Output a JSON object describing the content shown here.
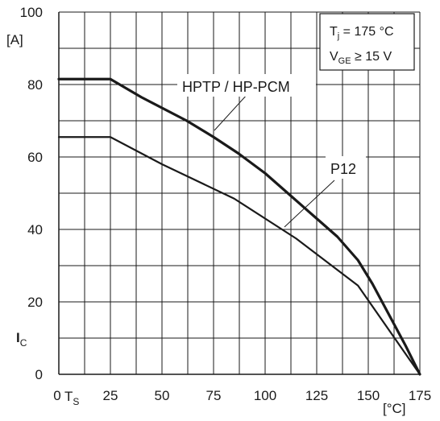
{
  "chart_data": {
    "type": "line",
    "xlim": [
      0,
      175
    ],
    "ylim": [
      0,
      100
    ],
    "x_ticks": [
      "0",
      "25",
      "50",
      "75",
      "100",
      "125",
      "150",
      "175"
    ],
    "y_ticks": [
      "0",
      "20",
      "40",
      "60",
      "80",
      "100"
    ],
    "x_unit": "[°C]",
    "x_symbol": "T",
    "x_symbol_sub": "S",
    "y_unit": "[A]",
    "y_symbol": "I",
    "y_symbol_sub": "C",
    "grid": true,
    "conditions": {
      "line1_symbol": "T",
      "line1_sub": "j",
      "line1_rest": " = 175 °C",
      "line2_symbol": "V",
      "line2_sub": "GE",
      "line2_rest": " ≥ 15 V"
    },
    "series": [
      {
        "name": "HPTP / HP-PCM",
        "x": [
          0,
          25,
          40,
          62,
          75,
          87,
          100,
          112,
          125,
          135,
          145,
          152,
          160,
          168,
          175
        ],
        "y": [
          81.5,
          81.5,
          76.5,
          70,
          65.5,
          61,
          55.5,
          49.5,
          43,
          38,
          31.5,
          25,
          16.5,
          8,
          0
        ]
      },
      {
        "name": "P12",
        "x": [
          0,
          25,
          50,
          85,
          115,
          145,
          175
        ],
        "y": [
          65.5,
          65.5,
          58,
          48.5,
          37.5,
          24.5,
          0
        ]
      }
    ]
  }
}
